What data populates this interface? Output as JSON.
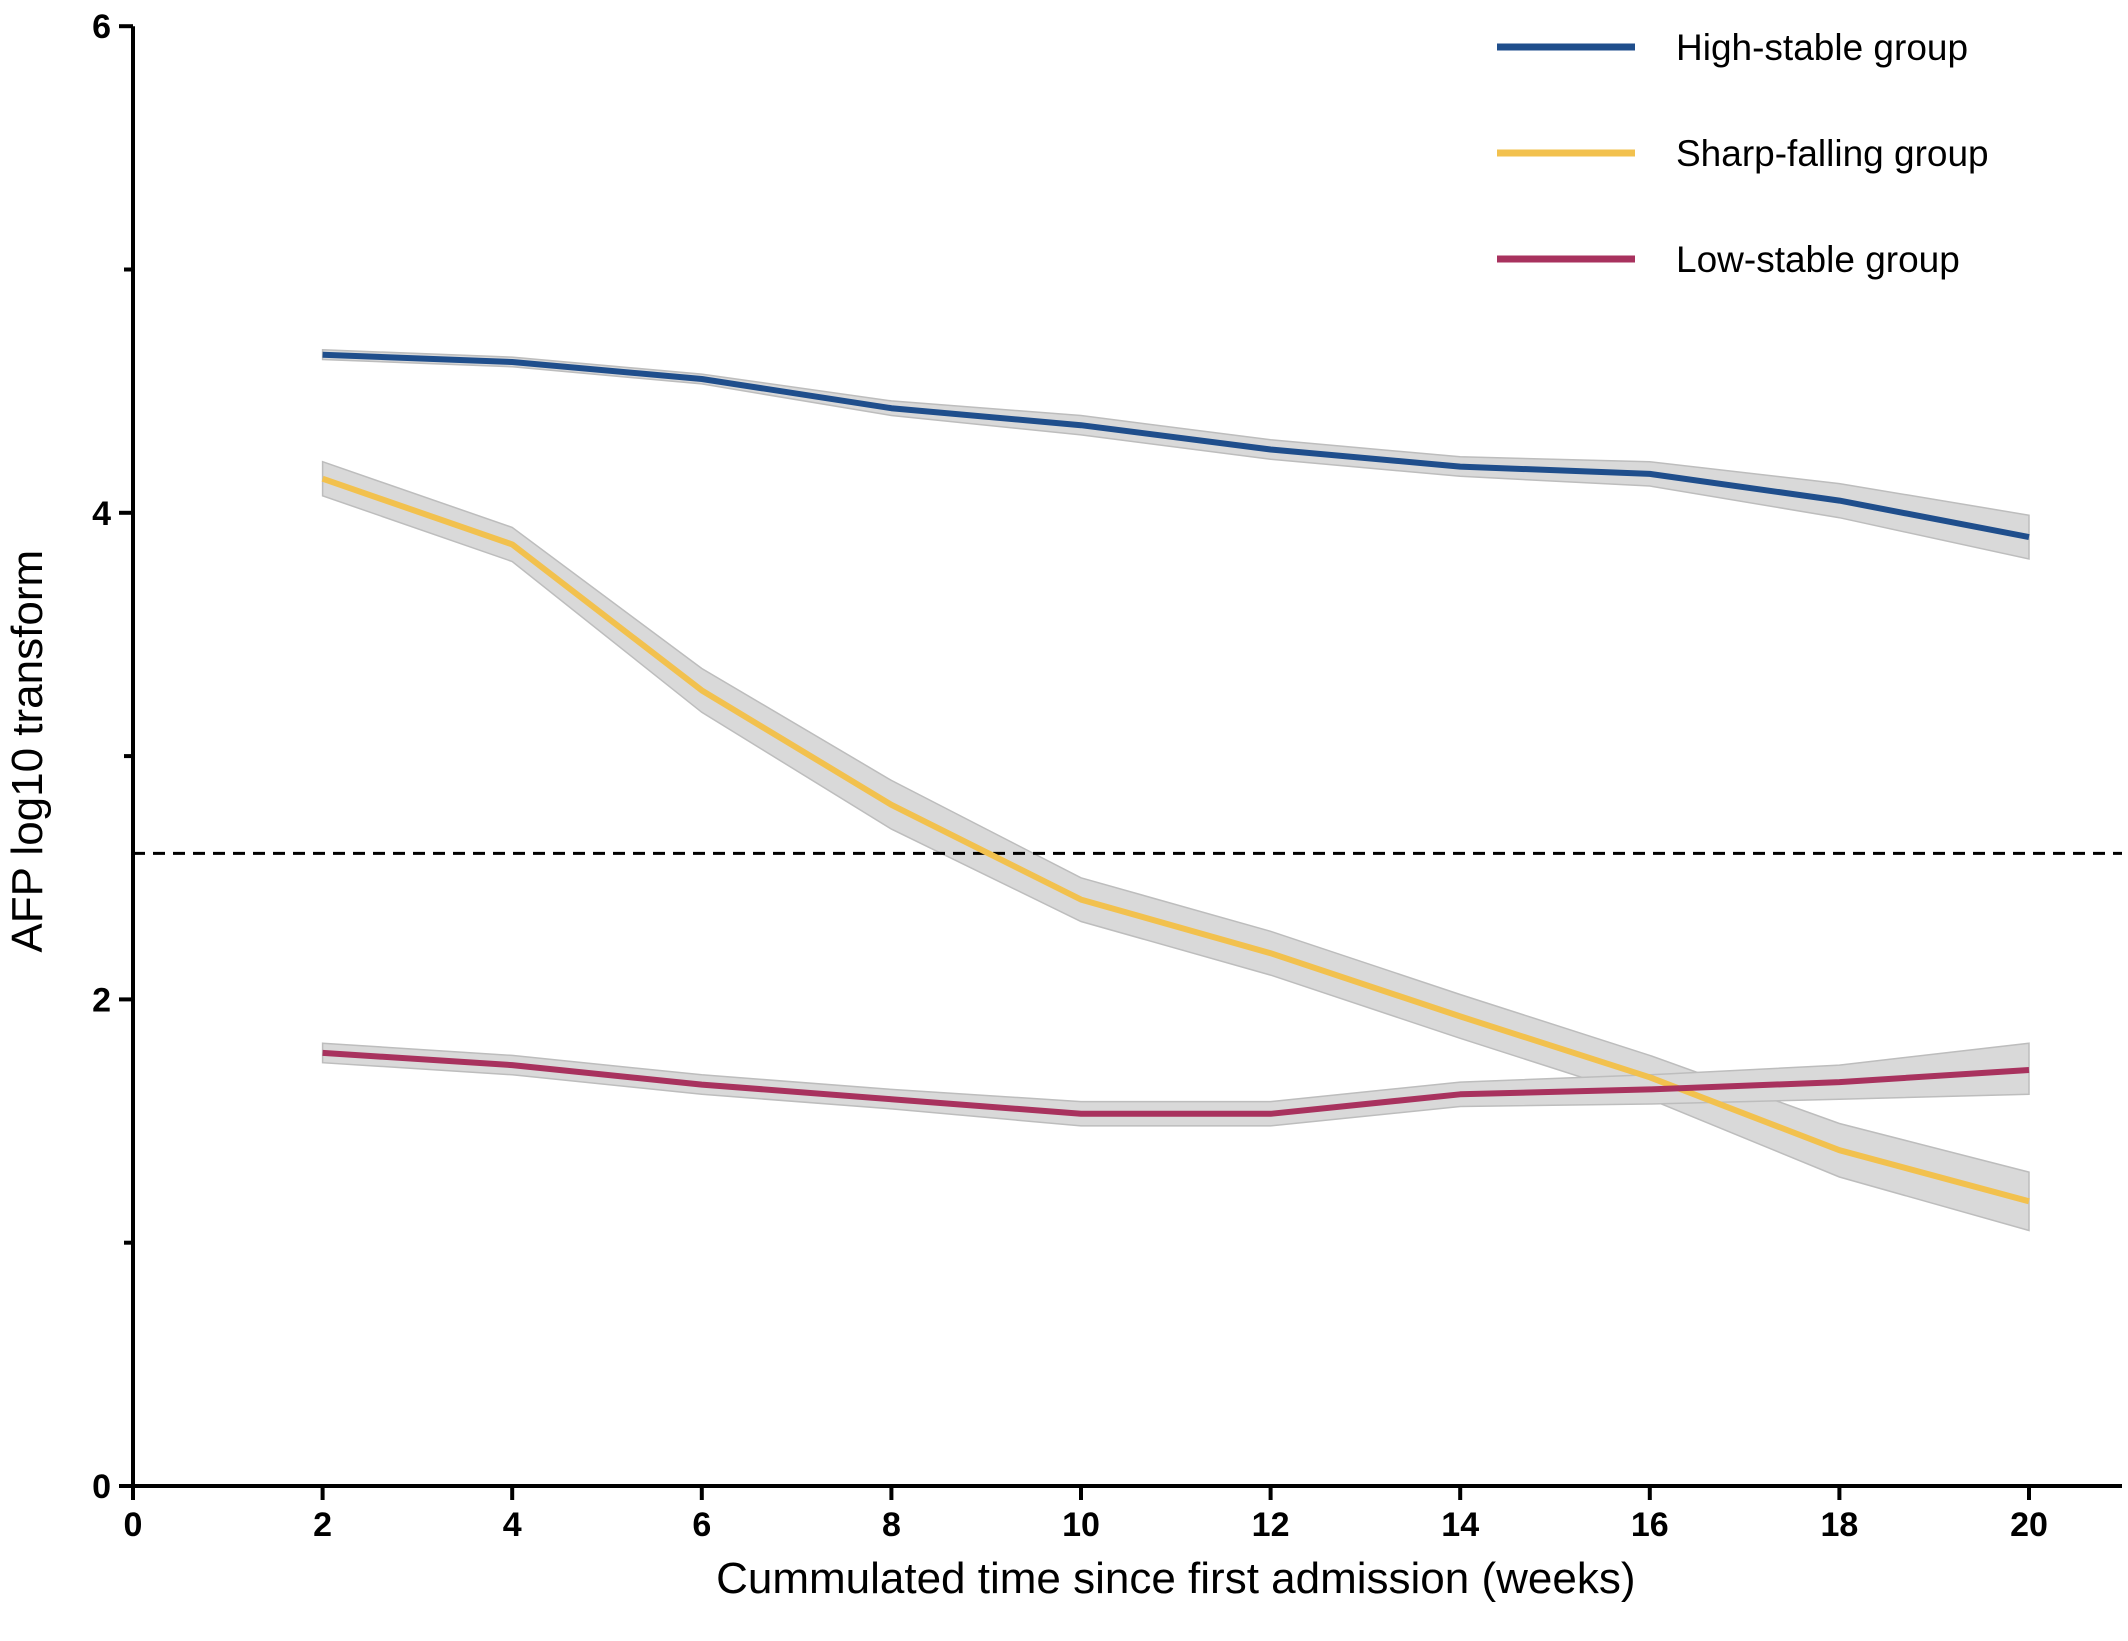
{
  "chart_data": {
    "type": "line",
    "title": "",
    "xlabel": "Cummulated time since first admission (weeks)",
    "ylabel": "AFP log10 transform",
    "xlim": [
      0,
      21
    ],
    "ylim": [
      0,
      6
    ],
    "xticks": [
      0,
      2,
      4,
      6,
      8,
      10,
      12,
      14,
      16,
      18,
      20
    ],
    "yticks_labeled": [
      0,
      2,
      4,
      6
    ],
    "yticks_minor": [
      1,
      3,
      5
    ],
    "grid": false,
    "legend_position": "top-right",
    "reference_line": {
      "y": 2.6,
      "style": "dashed",
      "color": "#000000"
    },
    "band_color": "#d9d9d9",
    "series": [
      {
        "name": "High-stable group",
        "color": "#1f4e8c",
        "x": [
          2,
          4,
          6,
          8,
          10,
          12,
          14,
          16,
          18,
          20
        ],
        "y": [
          4.65,
          4.62,
          4.55,
          4.43,
          4.36,
          4.26,
          4.19,
          4.16,
          4.05,
          3.9
        ],
        "lower": [
          4.63,
          4.6,
          4.53,
          4.4,
          4.32,
          4.22,
          4.15,
          4.11,
          3.98,
          3.81
        ],
        "upper": [
          4.67,
          4.64,
          4.57,
          4.46,
          4.4,
          4.3,
          4.23,
          4.21,
          4.12,
          3.99
        ]
      },
      {
        "name": "Sharp-falling group",
        "color": "#f2c14e",
        "x": [
          2,
          4,
          6,
          8,
          10,
          12,
          14,
          16,
          18,
          20
        ],
        "y": [
          4.14,
          3.87,
          3.27,
          2.8,
          2.41,
          2.19,
          1.93,
          1.68,
          1.38,
          1.17
        ],
        "lower": [
          4.07,
          3.8,
          3.18,
          2.7,
          2.32,
          2.1,
          1.84,
          1.59,
          1.27,
          1.05
        ],
        "upper": [
          4.21,
          3.94,
          3.36,
          2.9,
          2.5,
          2.28,
          2.02,
          1.77,
          1.49,
          1.29
        ]
      },
      {
        "name": "Low-stable group",
        "color": "#a8325e",
        "x": [
          2,
          4,
          6,
          8,
          10,
          12,
          14,
          16,
          18,
          20
        ],
        "y": [
          1.78,
          1.73,
          1.65,
          1.59,
          1.53,
          1.53,
          1.61,
          1.63,
          1.66,
          1.71
        ],
        "lower": [
          1.74,
          1.69,
          1.61,
          1.55,
          1.48,
          1.48,
          1.56,
          1.57,
          1.59,
          1.61
        ],
        "upper": [
          1.82,
          1.77,
          1.69,
          1.63,
          1.58,
          1.58,
          1.66,
          1.69,
          1.73,
          1.82
        ]
      }
    ]
  }
}
